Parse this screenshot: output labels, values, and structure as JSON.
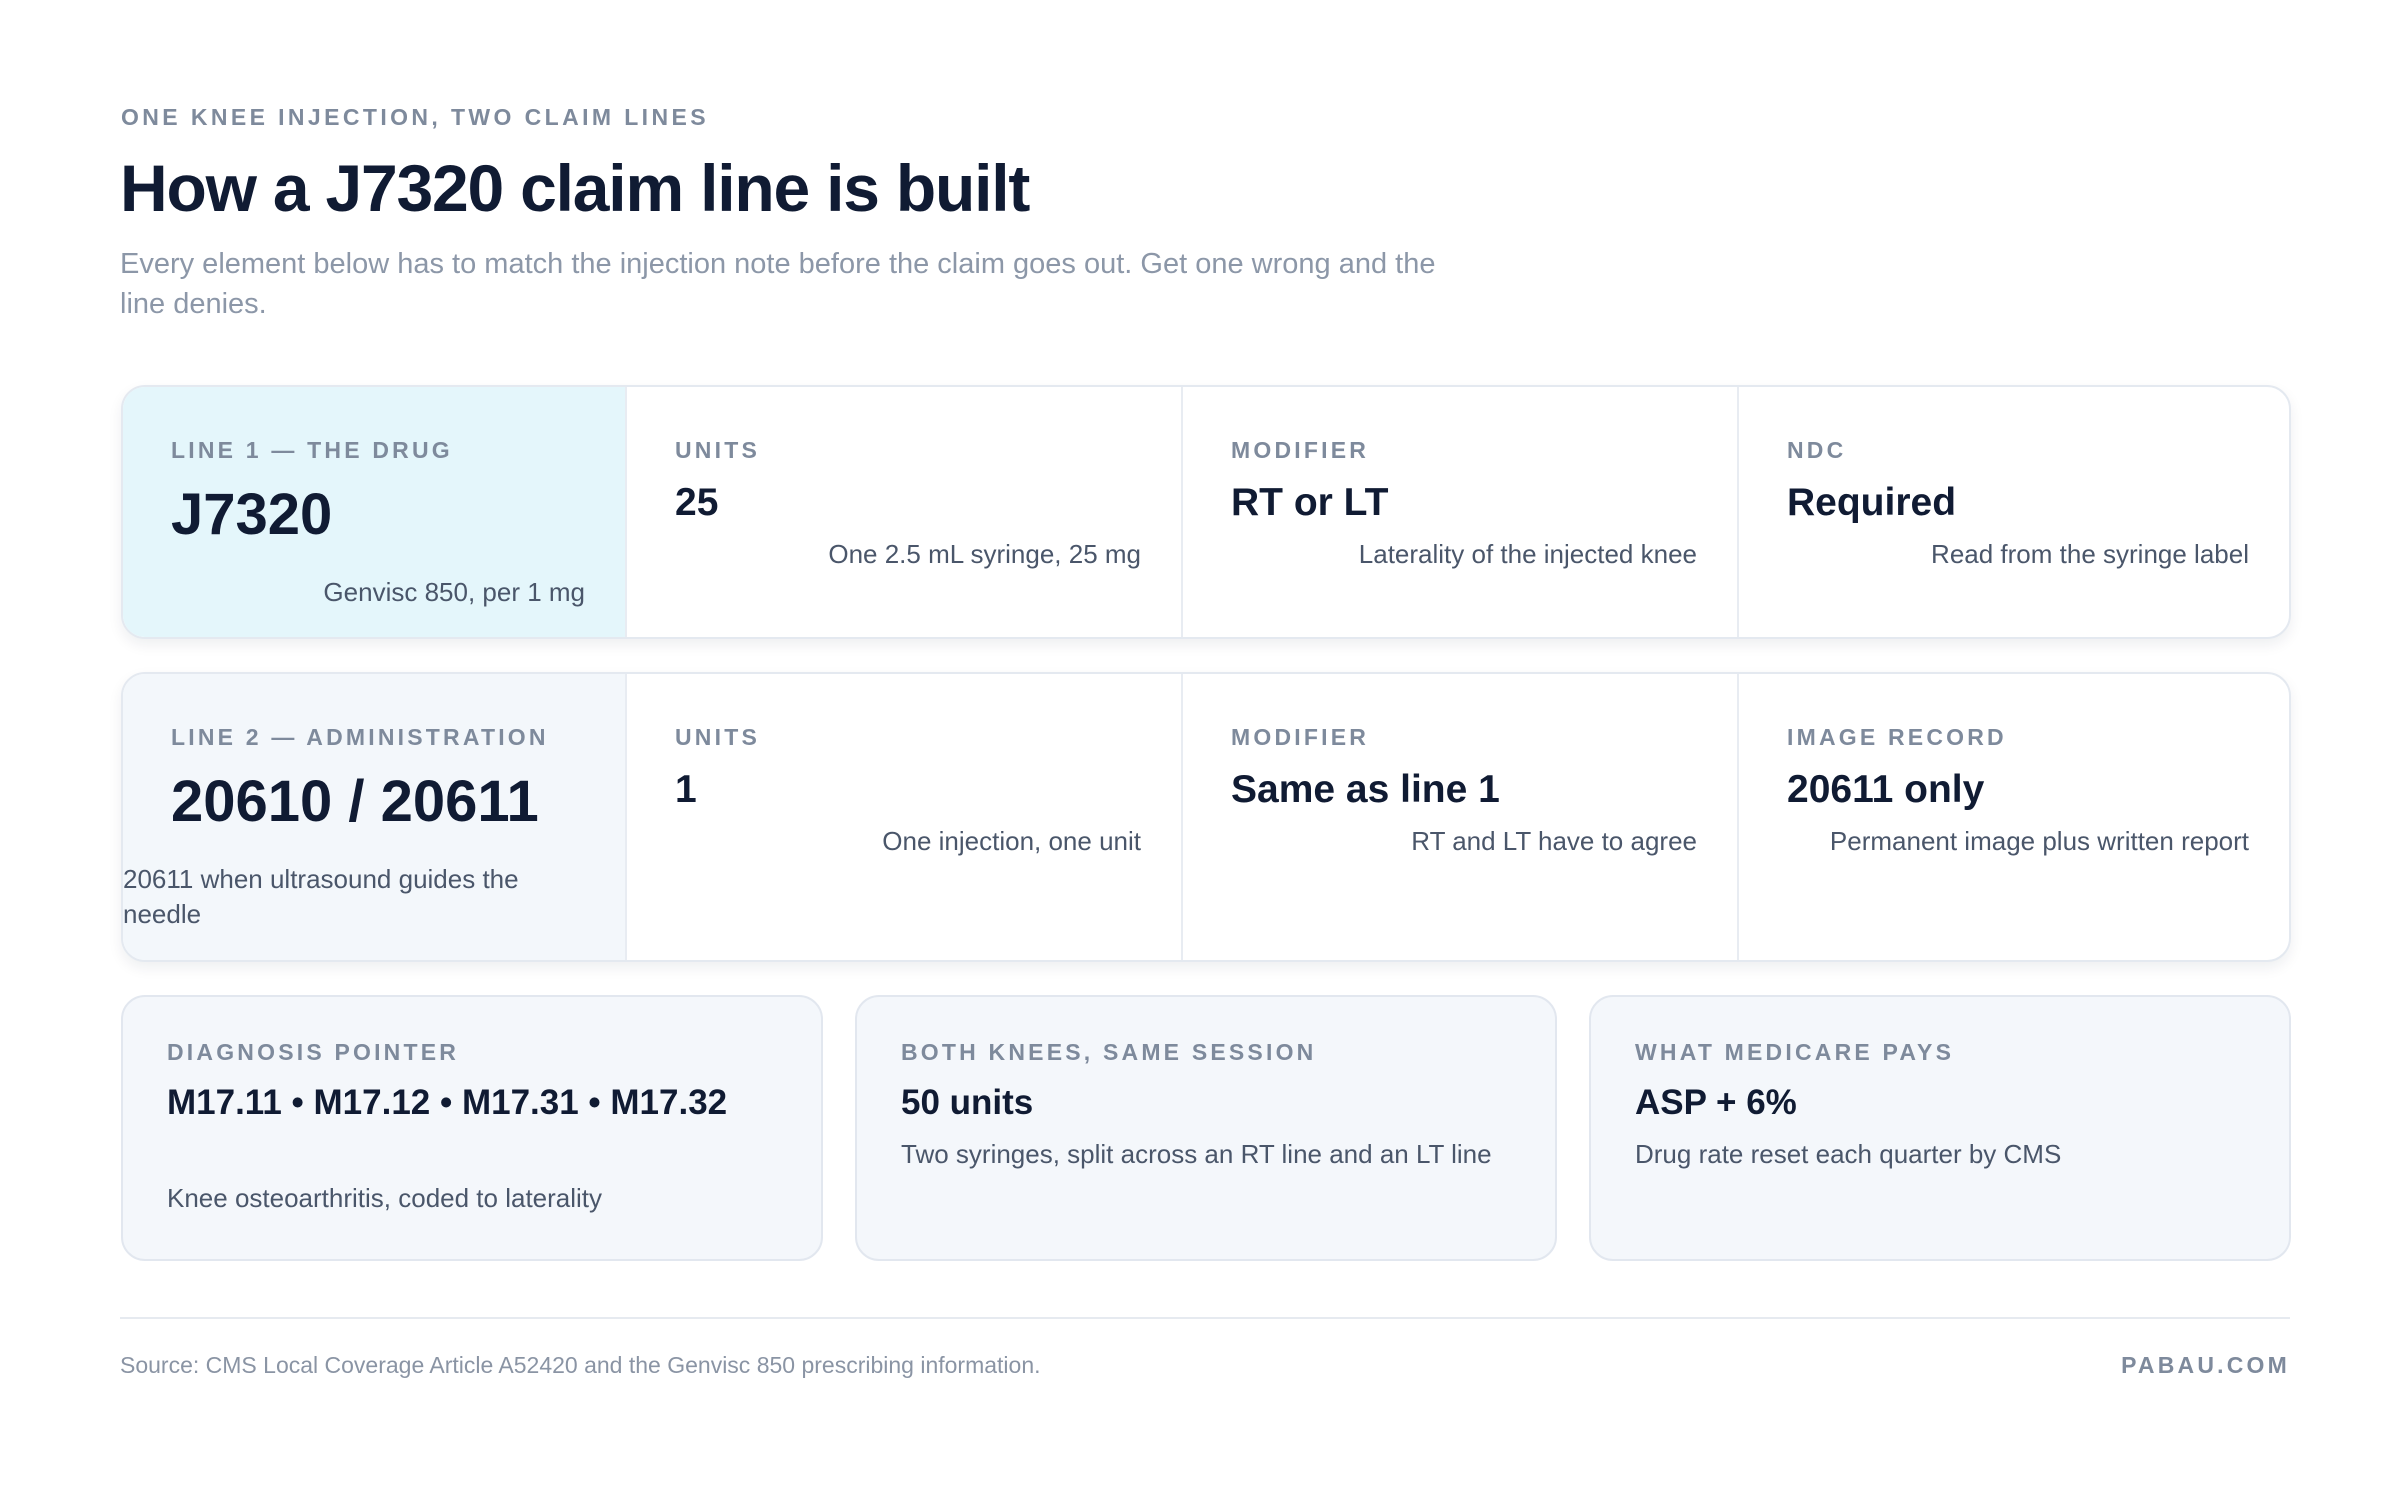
{
  "header": {
    "eyebrow": "ONE KNEE INJECTION, TWO CLAIM LINES",
    "title": "How a J7320 claim line is built",
    "subtitle": "Every element below has to match the injection note before the claim goes out. Get one wrong and the line denies."
  },
  "line1": {
    "drug": {
      "label": "LINE 1 — THE DRUG",
      "value": "J7320",
      "note": "Genvisc 850, per 1 mg"
    },
    "units": {
      "label": "UNITS",
      "value": "25",
      "note": "One 2.5 mL syringe, 25 mg"
    },
    "modifier": {
      "label": "MODIFIER",
      "value": "RT or LT",
      "note": "Laterality of the injected knee"
    },
    "ndc": {
      "label": "NDC",
      "value": "Required",
      "note": "Read from the syringe label"
    }
  },
  "line2": {
    "admin": {
      "label": "LINE 2 — ADMINISTRATION",
      "value": "20610 / 20611",
      "note": "20611 when ultrasound guides the needle"
    },
    "units": {
      "label": "UNITS",
      "value": "1",
      "note": "One injection, one unit"
    },
    "modifier": {
      "label": "MODIFIER",
      "value": "Same as line 1",
      "note": "RT and LT have to agree"
    },
    "image": {
      "label": "IMAGE RECORD",
      "value": "20611 only",
      "note": "Permanent image plus written report"
    }
  },
  "info": {
    "diagnosis": {
      "label": "DIAGNOSIS POINTER",
      "value": "M17.11 • M17.12 • M17.31 • M17.32",
      "note": "Knee osteoarthritis, coded to laterality"
    },
    "both_knees": {
      "label": "BOTH KNEES, SAME SESSION",
      "value": "50 units",
      "note": "Two syringes, split across an RT line and an LT line"
    },
    "medicare": {
      "label": "WHAT MEDICARE PAYS",
      "value": "ASP + 6%",
      "note": "Drug rate reset each quarter by CMS"
    }
  },
  "footer": {
    "source": "Source: CMS Local Coverage Article A52420 and the Genvisc 850 prescribing information.",
    "brand": "PABAU.COM"
  }
}
